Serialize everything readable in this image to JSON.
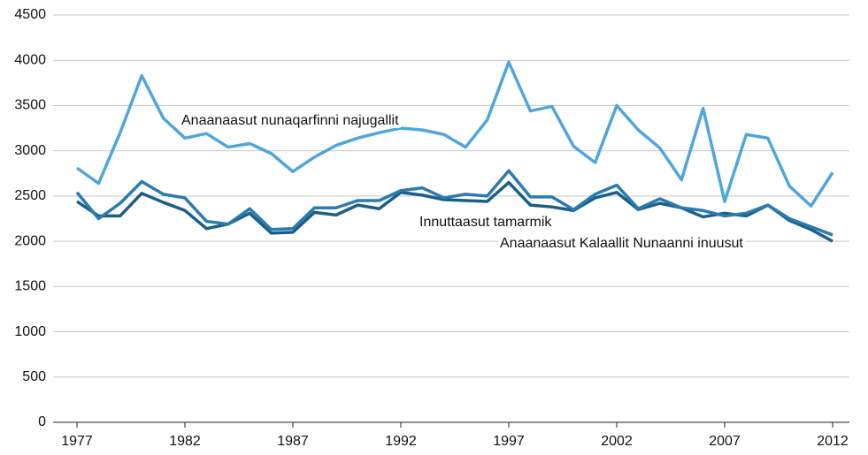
{
  "chart_data": {
    "type": "line",
    "x": [
      1977,
      1978,
      1979,
      1980,
      1981,
      1982,
      1983,
      1984,
      1985,
      1986,
      1987,
      1988,
      1989,
      1990,
      1991,
      1992,
      1993,
      1994,
      1995,
      1996,
      1997,
      1998,
      1999,
      2000,
      2001,
      2002,
      2003,
      2004,
      2005,
      2006,
      2007,
      2008,
      2009,
      2010,
      2011,
      2012
    ],
    "series": [
      {
        "name": "Anaanaasut nunaqarfinni najugallit",
        "color": "#4fa6dc",
        "values": [
          2810,
          2640,
          3200,
          3830,
          3360,
          3140,
          3190,
          3040,
          3080,
          2970,
          2770,
          2930,
          3060,
          3140,
          3200,
          3250,
          3230,
          3180,
          3040,
          3340,
          3980,
          3440,
          3490,
          3050,
          2870,
          3500,
          3230,
          3030,
          2680,
          3470,
          2440,
          3180,
          3140,
          2610,
          2390,
          2760
        ]
      },
      {
        "name": "Innuttaasut tamarmik",
        "color": "#2a7bb0",
        "values": [
          2540,
          2250,
          2420,
          2660,
          2520,
          2480,
          2220,
          2190,
          2360,
          2130,
          2140,
          2370,
          2370,
          2450,
          2450,
          2560,
          2590,
          2480,
          2520,
          2500,
          2780,
          2490,
          2490,
          2350,
          2520,
          2620,
          2360,
          2470,
          2370,
          2340,
          2280,
          2310,
          2400,
          2250,
          2160,
          2070
        ]
      },
      {
        "name": "Anaanaasut Kalaallit Nunaanni inuusut",
        "color": "#1b5f86",
        "values": [
          2440,
          2280,
          2280,
          2530,
          2430,
          2340,
          2140,
          2190,
          2310,
          2090,
          2100,
          2320,
          2290,
          2400,
          2360,
          2540,
          2510,
          2460,
          2450,
          2440,
          2650,
          2400,
          2380,
          2340,
          2480,
          2540,
          2350,
          2420,
          2370,
          2270,
          2310,
          2280,
          2400,
          2230,
          2130,
          2000
        ]
      }
    ],
    "xlim": [
      1977,
      2012
    ],
    "xticks": [
      1977,
      1982,
      1987,
      1992,
      1997,
      2002,
      2007,
      2012
    ],
    "ylim": [
      0,
      4500
    ],
    "yticks": [
      0,
      500,
      1000,
      1500,
      2000,
      2500,
      3000,
      3500,
      4000,
      4500
    ],
    "grid": true
  }
}
